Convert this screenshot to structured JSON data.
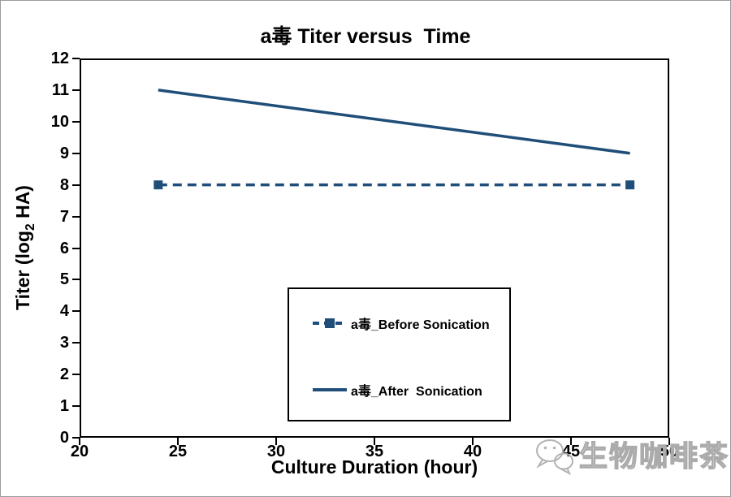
{
  "chart_data": {
    "type": "line",
    "title": "a毒 Titer versus  Time",
    "xlabel": "Culture Duration (hour)",
    "ylabel": "Titer (log2 HA)",
    "ylabel_parts": {
      "pre": "Titer (log",
      "sub": "2",
      "post": " HA)"
    },
    "xlim": [
      20,
      50
    ],
    "ylim": [
      0,
      12
    ],
    "x_ticks": [
      20,
      25,
      30,
      35,
      40,
      45,
      50
    ],
    "y_ticks": [
      0,
      1,
      2,
      3,
      4,
      5,
      6,
      7,
      8,
      9,
      10,
      11,
      12
    ],
    "grid": false,
    "legend_position": "inside-lower-center",
    "series": [
      {
        "name": "a毒_Before Sonication",
        "x": [
          24,
          48
        ],
        "y": [
          8,
          8
        ],
        "style": "dashed",
        "marker": "square",
        "color": "#1F4E79"
      },
      {
        "name": "a毒_After  Sonication",
        "x": [
          24,
          48
        ],
        "y": [
          11,
          9
        ],
        "style": "solid",
        "marker": "none",
        "color": "#1F4E79"
      }
    ]
  },
  "legend": {
    "entries": [
      {
        "label": "a毒_Before Sonication",
        "icon": "dashed-line-square-marker-sample"
      },
      {
        "label": "a毒_After  Sonication",
        "icon": "solid-line-sample"
      }
    ]
  },
  "watermark": {
    "text": "生物咖啡茶",
    "logo_icon": "wechat-bubbles-logo"
  },
  "colors": {
    "series_line": "#1F4E79",
    "axis": "#000000",
    "text": "#000000",
    "watermark": "#ababab"
  }
}
